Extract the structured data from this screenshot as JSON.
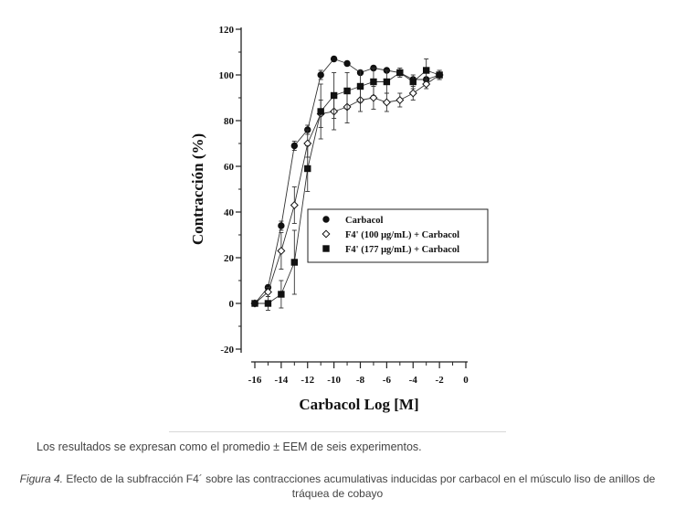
{
  "chart_data": {
    "type": "line",
    "title": "",
    "xlabel": "Carbacol Log [M]",
    "ylabel": "Contracción (%)",
    "xlim": [
      -17,
      0
    ],
    "ylim": [
      -20,
      120
    ],
    "xticks": [
      -16,
      -14,
      -12,
      -10,
      -8,
      -6,
      -4,
      -2,
      0
    ],
    "yticks": [
      -20,
      0,
      20,
      40,
      60,
      80,
      100,
      120
    ],
    "legend_position": "center-right",
    "series": [
      {
        "name": "Carbacol",
        "marker": "filled-circle",
        "x": [
          -16,
          -15,
          -14,
          -13,
          -12,
          -11,
          -10,
          -9,
          -8,
          -7,
          -6,
          -5,
          -4,
          -3,
          -2
        ],
        "values": [
          0,
          7,
          34,
          69,
          76,
          100,
          107,
          105,
          101,
          103,
          102,
          101,
          98,
          98,
          100
        ],
        "errors": [
          0,
          1,
          2,
          2,
          2,
          2,
          1,
          1,
          1,
          1,
          1,
          1,
          1,
          1,
          1
        ]
      },
      {
        "name": "F4' (100 μg/mL) + Carbacol",
        "marker": "open-diamond",
        "x": [
          -16,
          -15,
          -14,
          -13,
          -12,
          -11,
          -10,
          -9,
          -8,
          -7,
          -6,
          -5,
          -4,
          -3,
          -2
        ],
        "values": [
          0,
          5,
          23,
          43,
          70,
          83,
          84,
          86,
          89,
          90,
          88,
          89,
          92,
          96,
          100
        ],
        "errors": [
          0,
          2,
          8,
          8,
          6,
          6,
          8,
          7,
          5,
          5,
          4,
          3,
          3,
          2,
          2
        ]
      },
      {
        "name": "F4' (177 μg/mL) + Carbacol",
        "marker": "filled-square",
        "x": [
          -16,
          -15,
          -14,
          -13,
          -12,
          -11,
          -10,
          -9,
          -8,
          -7,
          -6,
          -5,
          -4,
          -3,
          -2
        ],
        "values": [
          0,
          0,
          4,
          18,
          59,
          84,
          91,
          93,
          95,
          97,
          97,
          101,
          97,
          102,
          100
        ],
        "errors": [
          0,
          3,
          6,
          14,
          10,
          12,
          10,
          8,
          7,
          6,
          5,
          2,
          3,
          5,
          2
        ]
      }
    ]
  },
  "footnote": "Los resultados se expresan como el promedio ± EEM de seis experimentos.",
  "caption": {
    "label": "Figura 4.",
    "text": " Efecto de la subfracción F4´ sobre las contracciones acumulativas inducidas por carbacol en el músculo liso de anillos de tráquea de cobayo"
  }
}
